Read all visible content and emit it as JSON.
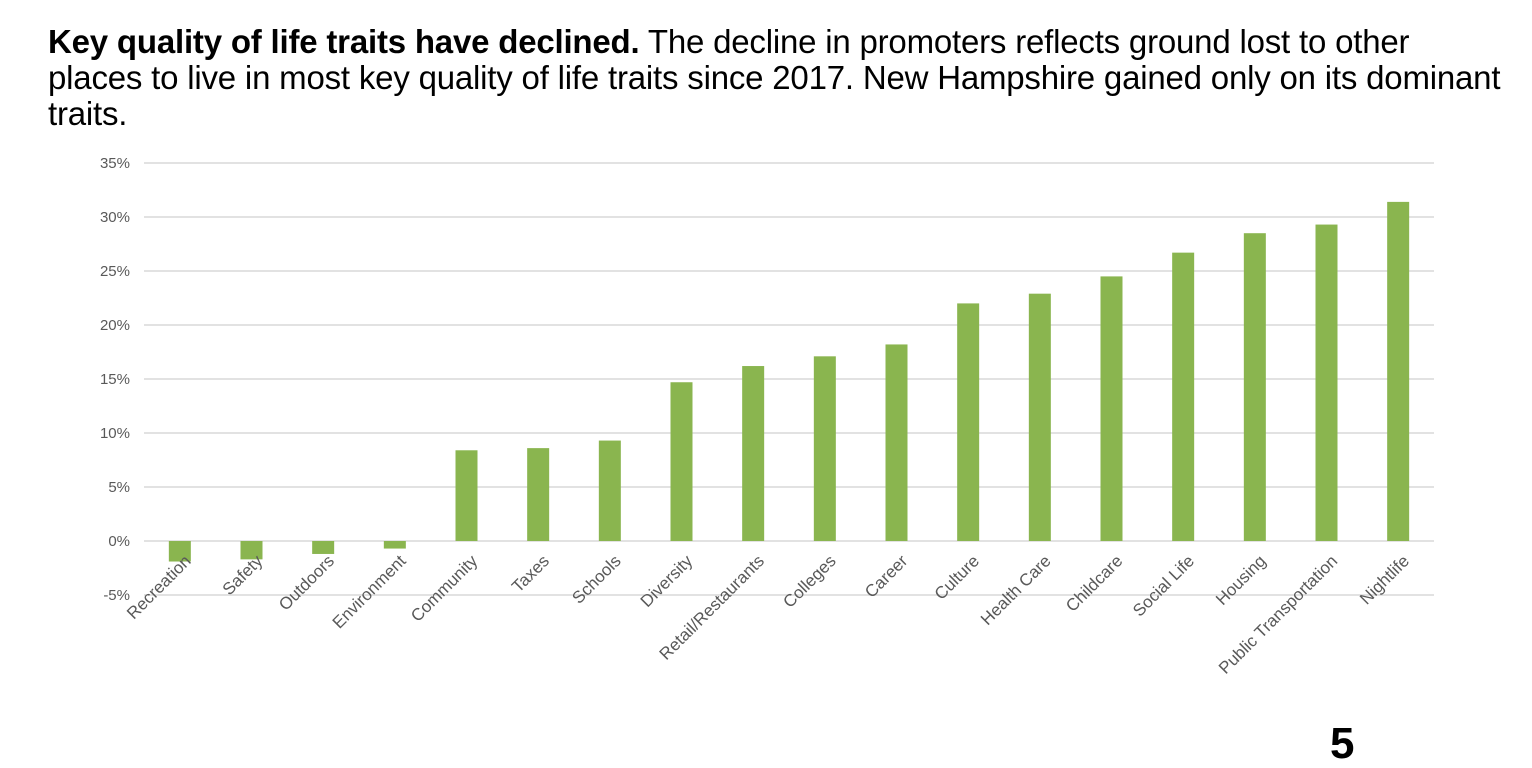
{
  "headline": {
    "bold": "Key quality of life traits have declined.",
    "rest": " The decline in promoters reflects ground lost to other places to live in most key quality of life traits since 2017. New Hampshire gained only on its dominant traits."
  },
  "page_number": "5",
  "chart_data": {
    "type": "bar",
    "title": "",
    "xlabel": "",
    "ylabel": "",
    "ylim": [
      -5,
      35
    ],
    "yticks": [
      -5,
      0,
      5,
      10,
      15,
      20,
      25,
      30,
      35
    ],
    "ytick_labels": [
      "-5%",
      "0%",
      "5%",
      "10%",
      "15%",
      "20%",
      "25%",
      "30%",
      "35%"
    ],
    "grid": true,
    "legend": "none",
    "bar_color": "#8AB54F",
    "categories": [
      "Recreation",
      "Safety",
      "Outdoors",
      "Environment",
      "Community",
      "Taxes",
      "Schools",
      "Diversity",
      "Retail/Restaurants",
      "Colleges",
      "Career",
      "Culture",
      "Health Care",
      "Childcare",
      "Social Life",
      "Housing",
      "Public Transportation",
      "Nightlife"
    ],
    "values": [
      -1.9,
      -1.7,
      -1.2,
      -0.7,
      8.4,
      8.6,
      9.3,
      14.7,
      16.2,
      17.1,
      18.2,
      22.0,
      22.9,
      24.5,
      26.7,
      28.5,
      29.3,
      31.4
    ]
  }
}
